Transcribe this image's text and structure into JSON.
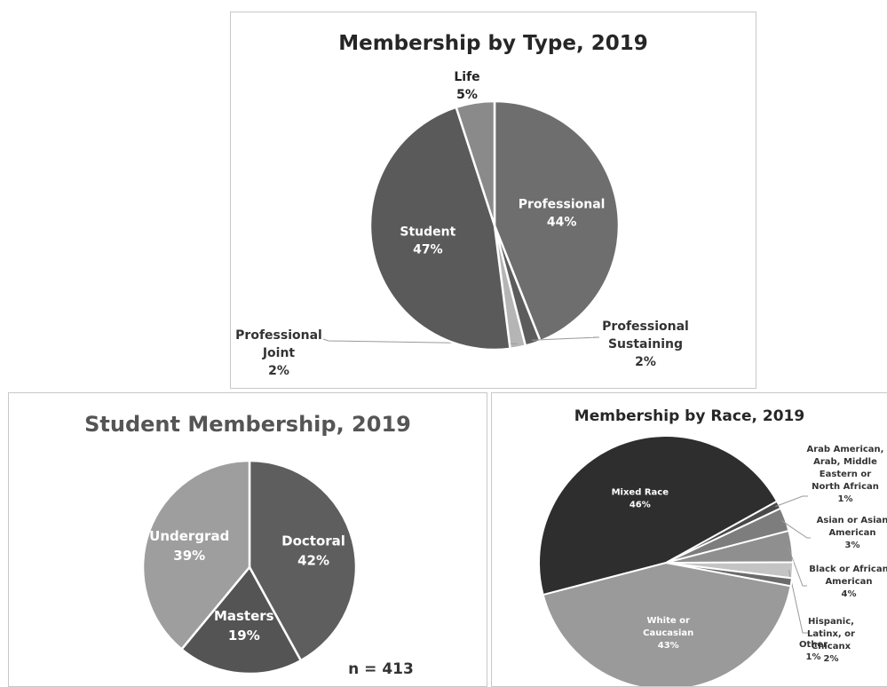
{
  "chart_data": [
    {
      "type": "pie",
      "title": "Membership by Type, 2019",
      "slices": [
        {
          "label_lines": [
            "Professional"
          ],
          "value": 44,
          "pct": "44%",
          "color": "#6e6e6e"
        },
        {
          "label_lines": [
            "Professional",
            "Sustaining"
          ],
          "value": 2,
          "pct": "2%",
          "color": "#5c5c5c"
        },
        {
          "label_lines": [
            "Professional",
            "Joint"
          ],
          "value": 2,
          "pct": "2%",
          "color": "#b5b5b5"
        },
        {
          "label_lines": [
            "Student"
          ],
          "value": 47,
          "pct": "47%",
          "color": "#5a5a5a"
        },
        {
          "label_lines": [
            "Life"
          ],
          "value": 5,
          "pct": "5%",
          "color": "#8a8a8a"
        }
      ]
    },
    {
      "type": "pie",
      "title": "Student Membership, 2019",
      "annotation": "n = 413",
      "slices": [
        {
          "label_lines": [
            "Doctoral"
          ],
          "value": 42,
          "pct": "42%",
          "color": "#5e5e5e"
        },
        {
          "label_lines": [
            "Masters"
          ],
          "value": 19,
          "pct": "19%",
          "color": "#545454"
        },
        {
          "label_lines": [
            "Undergrad"
          ],
          "value": 39,
          "pct": "39%",
          "color": "#9e9e9e"
        }
      ]
    },
    {
      "type": "pie",
      "title": "Membership by Race, 2019",
      "slices": [
        {
          "label_lines": [
            "Arab American,",
            "Arab, Middle",
            "Eastern or",
            "North African"
          ],
          "value": 1,
          "pct": "1%",
          "color": "#4a4a4a"
        },
        {
          "label_lines": [
            "Asian or Asian",
            "American"
          ],
          "value": 3,
          "pct": "3%",
          "color": "#7d7d7d"
        },
        {
          "label_lines": [
            "Black or African",
            "American"
          ],
          "value": 4,
          "pct": "4%",
          "color": "#8f8f8f"
        },
        {
          "label_lines": [
            "Hispanic,",
            "Latinx, or",
            "Chicanx"
          ],
          "value": 2,
          "pct": "2%",
          "color": "#c4c4c4"
        },
        {
          "label_lines": [
            "Other"
          ],
          "value": 1,
          "pct": "1%",
          "color": "#6b6b6b"
        },
        {
          "label_lines": [
            "White or",
            "Caucasian"
          ],
          "value": 43,
          "pct": "43%",
          "color": "#9a9a9a"
        },
        {
          "label_lines": [
            "Mixed Race"
          ],
          "value": 46,
          "pct": "46%",
          "color": "#2e2e2e"
        }
      ]
    }
  ]
}
